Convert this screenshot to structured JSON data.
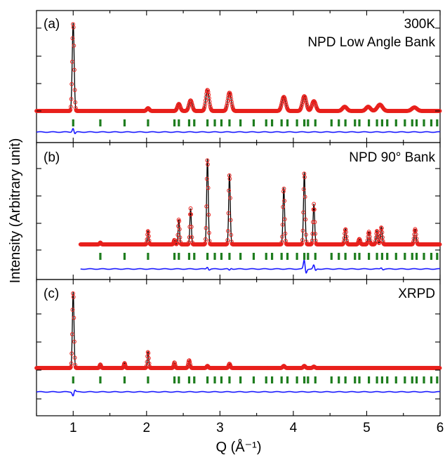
{
  "figure": {
    "ylabel": "Intensity (Arbitrary unit)",
    "xlabel": "Q (Å⁻¹)",
    "x_ticks": [
      "1",
      "2",
      "3",
      "4",
      "5",
      "6"
    ],
    "colors": {
      "observed": "#e8201c",
      "calculated": "#000000",
      "difference": "#1a1aff",
      "bragg": "#1e7d1e",
      "frame": "#000000"
    }
  },
  "chart_data": [
    {
      "type": "line",
      "panel": "(a)",
      "title_lines": [
        "300K",
        "NPD Low Angle Bank"
      ],
      "xlim": [
        0.5,
        6.0
      ],
      "q_range": [
        0.5,
        6.0
      ],
      "peaks": [
        {
          "q": 1.0,
          "height": 125,
          "width": 0.013
        },
        {
          "q": 2.02,
          "height": 4,
          "width": 0.018
        },
        {
          "q": 2.44,
          "height": 10,
          "width": 0.02
        },
        {
          "q": 2.6,
          "height": 15,
          "width": 0.022
        },
        {
          "q": 2.83,
          "height": 30,
          "width": 0.022
        },
        {
          "q": 3.13,
          "height": 26,
          "width": 0.024
        },
        {
          "q": 3.87,
          "height": 20,
          "width": 0.026
        },
        {
          "q": 4.15,
          "height": 21,
          "width": 0.026
        },
        {
          "q": 4.28,
          "height": 14,
          "width": 0.026
        },
        {
          "q": 4.7,
          "height": 6,
          "width": 0.03
        },
        {
          "q": 5.02,
          "height": 6,
          "width": 0.03
        },
        {
          "q": 5.18,
          "height": 9,
          "width": 0.035
        },
        {
          "q": 5.65,
          "height": 5,
          "width": 0.035
        }
      ],
      "bragg_q": [
        1.0,
        1.37,
        1.7,
        2.02,
        2.38,
        2.44,
        2.58,
        2.65,
        2.83,
        2.93,
        3.02,
        3.13,
        3.28,
        3.46,
        3.63,
        3.71,
        3.84,
        3.92,
        4.05,
        4.15,
        4.2,
        4.3,
        4.52,
        4.62,
        4.71,
        4.84,
        4.9,
        5.03,
        5.14,
        5.21,
        5.28,
        5.4,
        5.52,
        5.62,
        5.68,
        5.78,
        5.88,
        5.96
      ],
      "difference_features": [
        {
          "q": 1.0,
          "amplitude": 6
        }
      ]
    },
    {
      "type": "line",
      "panel": "(b)",
      "title_lines": [
        "NPD 90° Bank"
      ],
      "q_range": [
        1.1,
        6.0
      ],
      "peaks": [
        {
          "q": 1.37,
          "height": 2,
          "width": 0.01
        },
        {
          "q": 2.02,
          "height": 15,
          "width": 0.01
        },
        {
          "q": 2.38,
          "height": 5,
          "width": 0.01
        },
        {
          "q": 2.44,
          "height": 28,
          "width": 0.01
        },
        {
          "q": 2.6,
          "height": 40,
          "width": 0.01
        },
        {
          "q": 2.83,
          "height": 95,
          "width": 0.011
        },
        {
          "q": 3.13,
          "height": 78,
          "width": 0.011
        },
        {
          "q": 3.87,
          "height": 63,
          "width": 0.011
        },
        {
          "q": 4.15,
          "height": 80,
          "width": 0.011
        },
        {
          "q": 4.28,
          "height": 45,
          "width": 0.011
        },
        {
          "q": 4.71,
          "height": 17,
          "width": 0.012
        },
        {
          "q": 4.9,
          "height": 6,
          "width": 0.012
        },
        {
          "q": 5.03,
          "height": 14,
          "width": 0.012
        },
        {
          "q": 5.14,
          "height": 15,
          "width": 0.012
        },
        {
          "q": 5.2,
          "height": 19,
          "width": 0.012
        },
        {
          "q": 5.66,
          "height": 17,
          "width": 0.013
        }
      ],
      "bragg_q": [
        1.37,
        1.7,
        2.02,
        2.38,
        2.44,
        2.58,
        2.65,
        2.83,
        2.93,
        3.02,
        3.13,
        3.28,
        3.46,
        3.63,
        3.71,
        3.84,
        3.92,
        4.05,
        4.15,
        4.2,
        4.3,
        4.52,
        4.62,
        4.71,
        4.84,
        4.9,
        5.03,
        5.14,
        5.21,
        5.28,
        5.4,
        5.52,
        5.62,
        5.68,
        5.78,
        5.88,
        5.96
      ],
      "difference_features": [
        {
          "q": 2.83,
          "amplitude": 3
        },
        {
          "q": 3.13,
          "amplitude": -2
        },
        {
          "q": 4.15,
          "amplitude": 14
        },
        {
          "q": 4.28,
          "amplitude": 6
        },
        {
          "q": 5.2,
          "amplitude": 2
        }
      ]
    },
    {
      "type": "line",
      "panel": "(c)",
      "title_lines": [
        "XRPD"
      ],
      "q_range": [
        0.5,
        6.0
      ],
      "peaks": [
        {
          "q": 1.0,
          "height": 108,
          "width": 0.011
        },
        {
          "q": 1.37,
          "height": 5,
          "width": 0.01
        },
        {
          "q": 1.7,
          "height": 7,
          "width": 0.01
        },
        {
          "q": 2.02,
          "height": 23,
          "width": 0.01
        },
        {
          "q": 2.38,
          "height": 8,
          "width": 0.01
        },
        {
          "q": 2.58,
          "height": 11,
          "width": 0.012
        },
        {
          "q": 2.83,
          "height": 3,
          "width": 0.012
        },
        {
          "q": 3.13,
          "height": 6,
          "width": 0.012
        },
        {
          "q": 3.87,
          "height": 3,
          "width": 0.014
        },
        {
          "q": 4.15,
          "height": 3,
          "width": 0.014
        },
        {
          "q": 4.28,
          "height": 2,
          "width": 0.014
        }
      ],
      "bragg_q": [
        1.0,
        1.37,
        1.7,
        2.02,
        2.38,
        2.44,
        2.58,
        2.65,
        2.83,
        2.93,
        3.02,
        3.13,
        3.28,
        3.46,
        3.63,
        3.71,
        3.84,
        3.92,
        4.05,
        4.15,
        4.2,
        4.3,
        4.52,
        4.62,
        4.71,
        4.84,
        4.9,
        5.03,
        5.14,
        5.21,
        5.28,
        5.4,
        5.52,
        5.62,
        5.68,
        5.78,
        5.88,
        5.96
      ],
      "difference_features": [
        {
          "q": 1.0,
          "amplitude": -6
        }
      ]
    }
  ]
}
